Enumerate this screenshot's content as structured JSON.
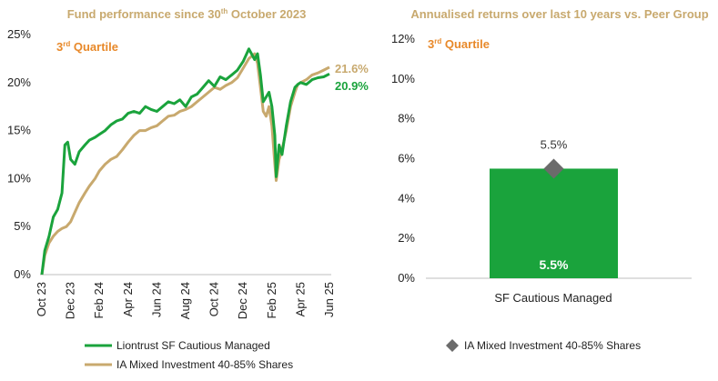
{
  "chart_data": [
    {
      "type": "line",
      "title": "Fund performance since 30th October 2023",
      "title_parts": [
        "Fund performance since 30",
        "th",
        " October 2023"
      ],
      "annotation": {
        "number": "3",
        "suffix": "rd",
        "word": " Quartile",
        "color": "#e8892a"
      },
      "ylim": [
        0,
        25
      ],
      "y_ticks": [
        0,
        5,
        10,
        15,
        20,
        25
      ],
      "y_tick_labels": [
        "0%",
        "5%",
        "10%",
        "15%",
        "20%",
        "25%"
      ],
      "x_tick_labels": [
        "Oct 23",
        "Dec 23",
        "Feb 24",
        "Apr 24",
        "Jun 24",
        "Aug 24",
        "Oct 24",
        "Dec 24",
        "Feb 25",
        "Apr 25",
        "Jun 25"
      ],
      "x_range_months": [
        0,
        20
      ],
      "legend_position": "bottom-left",
      "series": [
        {
          "name": "Liontrust SF Cautious Managed",
          "color": "#1aa33c",
          "end_label": "20.9%",
          "points": [
            [
              0,
              0
            ],
            [
              0.2,
              2.5
            ],
            [
              0.5,
              4
            ],
            [
              0.8,
              6
            ],
            [
              1.1,
              6.8
            ],
            [
              1.4,
              8.5
            ],
            [
              1.6,
              13.5
            ],
            [
              1.8,
              13.8
            ],
            [
              2,
              12
            ],
            [
              2.3,
              11.5
            ],
            [
              2.6,
              12.8
            ],
            [
              3,
              13.5
            ],
            [
              3.3,
              14
            ],
            [
              3.7,
              14.3
            ],
            [
              4,
              14.6
            ],
            [
              4.4,
              15
            ],
            [
              4.8,
              15.6
            ],
            [
              5.2,
              16
            ],
            [
              5.6,
              16.2
            ],
            [
              6,
              16.8
            ],
            [
              6.4,
              17
            ],
            [
              6.8,
              16.8
            ],
            [
              7.2,
              17.5
            ],
            [
              7.6,
              17.2
            ],
            [
              8,
              17
            ],
            [
              8.4,
              17.5
            ],
            [
              8.8,
              18
            ],
            [
              9.2,
              17.8
            ],
            [
              9.6,
              18.2
            ],
            [
              10,
              17.5
            ],
            [
              10.4,
              18.5
            ],
            [
              10.8,
              18.8
            ],
            [
              11.2,
              19.5
            ],
            [
              11.6,
              20.2
            ],
            [
              12,
              19.6
            ],
            [
              12.4,
              20.6
            ],
            [
              12.8,
              20.3
            ],
            [
              13.2,
              20.8
            ],
            [
              13.6,
              21.3
            ],
            [
              14,
              22.2
            ],
            [
              14.4,
              23.5
            ],
            [
              14.8,
              22.4
            ],
            [
              15,
              23
            ],
            [
              15.2,
              20.8
            ],
            [
              15.4,
              18
            ],
            [
              15.6,
              18.5
            ],
            [
              15.8,
              19
            ],
            [
              16,
              17.5
            ],
            [
              16.2,
              14.5
            ],
            [
              16.3,
              10.2
            ],
            [
              16.5,
              13.5
            ],
            [
              16.7,
              12.5
            ],
            [
              17,
              15.5
            ],
            [
              17.3,
              18
            ],
            [
              17.6,
              19.5
            ],
            [
              17.8,
              19.8
            ],
            [
              18,
              20
            ],
            [
              18.4,
              19.8
            ],
            [
              18.8,
              20.3
            ],
            [
              19.2,
              20.5
            ],
            [
              19.6,
              20.6
            ],
            [
              20,
              20.9
            ]
          ]
        },
        {
          "name": "IA Mixed Investment 40-85% Shares",
          "color": "#c8a96e",
          "end_label": "21.6%",
          "points": [
            [
              0,
              0
            ],
            [
              0.2,
              2
            ],
            [
              0.5,
              3.3
            ],
            [
              0.8,
              4
            ],
            [
              1.1,
              4.5
            ],
            [
              1.4,
              4.8
            ],
            [
              1.7,
              5
            ],
            [
              2,
              5.5
            ],
            [
              2.3,
              6.5
            ],
            [
              2.6,
              7.5
            ],
            [
              3,
              8.5
            ],
            [
              3.3,
              9.2
            ],
            [
              3.7,
              10
            ],
            [
              4,
              10.8
            ],
            [
              4.4,
              11.5
            ],
            [
              4.8,
              12
            ],
            [
              5.2,
              12.3
            ],
            [
              5.6,
              13
            ],
            [
              6,
              13.8
            ],
            [
              6.4,
              14.5
            ],
            [
              6.8,
              15
            ],
            [
              7.2,
              15
            ],
            [
              7.6,
              15.3
            ],
            [
              8,
              15.5
            ],
            [
              8.4,
              16
            ],
            [
              8.8,
              16.5
            ],
            [
              9.2,
              16.6
            ],
            [
              9.6,
              17
            ],
            [
              10,
              17.2
            ],
            [
              10.4,
              17.5
            ],
            [
              10.8,
              18
            ],
            [
              11.2,
              18.5
            ],
            [
              11.6,
              19
            ],
            [
              12,
              19.5
            ],
            [
              12.4,
              19.3
            ],
            [
              12.8,
              19.7
            ],
            [
              13.2,
              20
            ],
            [
              13.6,
              20.5
            ],
            [
              14,
              21.5
            ],
            [
              14.4,
              22.5
            ],
            [
              14.8,
              23
            ],
            [
              15,
              22
            ],
            [
              15.2,
              19.5
            ],
            [
              15.4,
              17
            ],
            [
              15.6,
              16.5
            ],
            [
              15.8,
              17.5
            ],
            [
              16,
              15.5
            ],
            [
              16.2,
              11.5
            ],
            [
              16.3,
              9.8
            ],
            [
              16.5,
              12
            ],
            [
              16.7,
              13
            ],
            [
              17,
              15
            ],
            [
              17.3,
              17.5
            ],
            [
              17.6,
              19
            ],
            [
              17.8,
              19.8
            ],
            [
              18,
              20
            ],
            [
              18.4,
              20.3
            ],
            [
              18.8,
              20.8
            ],
            [
              19.2,
              21
            ],
            [
              19.6,
              21.3
            ],
            [
              20,
              21.6
            ]
          ]
        }
      ]
    },
    {
      "type": "bar",
      "title": "Annualised returns over last 10 years vs. Peer Group",
      "annotation": {
        "number": "3",
        "suffix": "rd",
        "word": " Quartile",
        "color": "#e8892a"
      },
      "ylim": [
        0,
        12
      ],
      "y_ticks": [
        0,
        2,
        4,
        6,
        8,
        10,
        12
      ],
      "y_tick_labels": [
        "0%",
        "2%",
        "4%",
        "6%",
        "8%",
        "10%",
        "12%"
      ],
      "categories": [
        "SF Cautious Managed"
      ],
      "series": [
        {
          "name": "SF Cautious Managed",
          "values": [
            5.5
          ],
          "color": "#1aa33c",
          "data_label": "5.5%"
        }
      ],
      "markers": [
        {
          "name": "IA Mixed Investment 40-85% Shares",
          "values": [
            5.5
          ],
          "color": "#6b6b6b",
          "shape": "diamond",
          "data_label": "5.5%"
        }
      ],
      "legend_position": "bottom"
    }
  ]
}
